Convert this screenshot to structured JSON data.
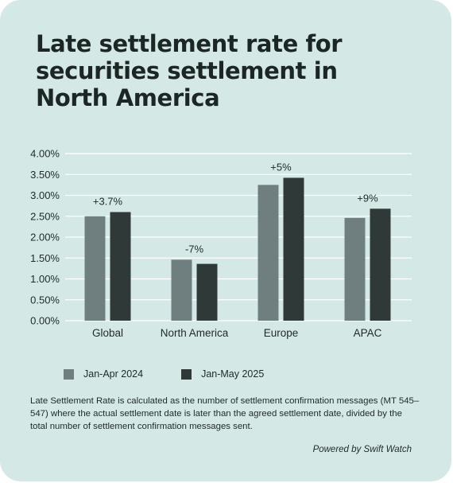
{
  "title": "Late settlement rate for securities settlement in North America",
  "chart_data": {
    "type": "bar",
    "categories": [
      "Global",
      "North America",
      "Europe",
      "APAC"
    ],
    "series": [
      {
        "name": "Jan-Apr 2024",
        "color": "#6f7f80",
        "values": [
          2.5,
          1.46,
          3.25,
          2.46
        ]
      },
      {
        "name": "Jan-May 2025",
        "color": "#2f3a38",
        "values": [
          2.6,
          1.36,
          3.42,
          2.68
        ]
      }
    ],
    "change_labels": [
      "+3.7%",
      "-7%",
      "+5%",
      "+9%"
    ],
    "yticks": [
      "0.00%",
      "0.50%",
      "1.00%",
      "1.50%",
      "2.00%",
      "2.50%",
      "3.00%",
      "3.50%",
      "4.00%"
    ],
    "ylim": [
      0,
      4
    ],
    "grid": true,
    "legend_position": "bottom"
  },
  "footnote": "Late Settlement Rate is calculated as the number of settlement confirmation messages (MT 545–547) where the actual settlement date is later than the agreed settlement date, divided by the total number of settlement confirmation messages sent.",
  "powered_by": "Powered by Swift Watch"
}
